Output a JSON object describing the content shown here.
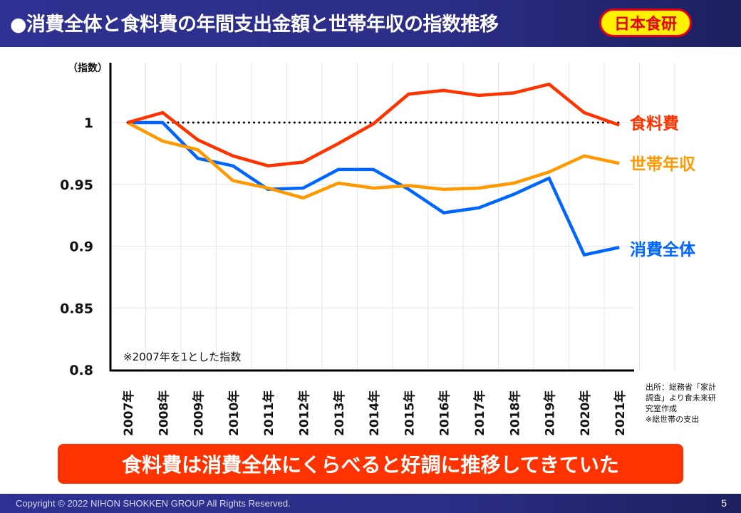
{
  "header": {
    "title": "●消費全体と食料費の年間支出金額と世帯年収の指数推移",
    "logo_text": "日本食研"
  },
  "chart_data": {
    "type": "line",
    "title": "",
    "ylabel": "（指数）",
    "xlabel": "",
    "ylim": [
      0.8,
      1.03
    ],
    "yticks": [
      {
        "value": 1,
        "label": "1"
      },
      {
        "value": 0.95,
        "label": "0.95"
      },
      {
        "value": 0.9,
        "label": "0.9"
      },
      {
        "value": 0.85,
        "label": "0.85"
      },
      {
        "value": 0.8,
        "label": "0.8"
      }
    ],
    "grid": true,
    "categories": [
      "2007年",
      "2008年",
      "2009年",
      "2010年",
      "2011年",
      "2012年",
      "2013年",
      "2014年",
      "2015年",
      "2016年",
      "2017年",
      "2018年",
      "2019年",
      "2020年",
      "2021年"
    ],
    "reference_line": {
      "value": 1,
      "style": "dotted"
    },
    "series": [
      {
        "name": "食料費",
        "color": "#ff3300",
        "values": [
          1.0,
          1.008,
          0.986,
          0.973,
          0.965,
          0.968,
          0.983,
          0.999,
          1.023,
          1.026,
          1.022,
          1.024,
          1.031,
          1.008,
          0.998
        ]
      },
      {
        "name": "世帯年収",
        "color": "#ff9900",
        "values": [
          1.0,
          0.985,
          0.978,
          0.953,
          0.947,
          0.939,
          0.951,
          0.947,
          0.949,
          0.946,
          0.947,
          0.951,
          0.96,
          0.973,
          0.967
        ]
      },
      {
        "name": "消費全体",
        "color": "#0066ff",
        "values": [
          1.0,
          1.0,
          0.971,
          0.965,
          0.946,
          0.947,
          0.962,
          0.962,
          0.946,
          0.927,
          0.931,
          0.942,
          0.955,
          0.893,
          0.899
        ]
      }
    ],
    "annotation": "※2007年を1とした指数",
    "legend_placement": "right (line-end labels)"
  },
  "source_note": [
    "出所：総務省「家計",
    "調査」より食未来研",
    "究室作成",
    "※総世帯の支出"
  ],
  "conclusion": "食料費は消費全体にくらべると好調に推移してきていた",
  "footer": {
    "copyright": "Copyright © 2022 NIHON SHOKKEN GROUP All Rights Reserved.",
    "page_number": "5"
  }
}
